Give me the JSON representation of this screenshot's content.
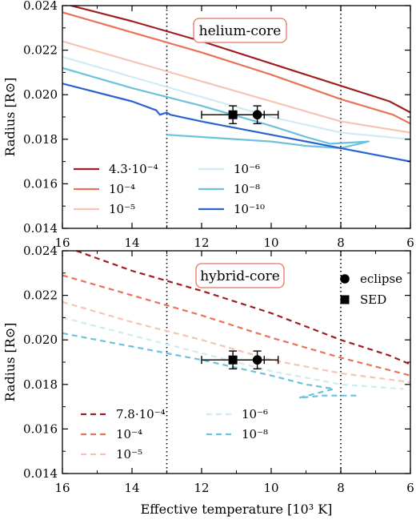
{
  "chart_data": [
    {
      "type": "line",
      "title": "helium-core",
      "xlabel": "",
      "ylabel": "Radius [R⊙]",
      "xlim": [
        16,
        6
      ],
      "ylim": [
        0.014,
        0.024
      ],
      "x_ticks": [
        "16",
        "14",
        "12",
        "10",
        "8",
        "6"
      ],
      "y_ticks": [
        "0.014",
        "0.016",
        "0.018",
        "0.020",
        "0.022",
        "0.024"
      ],
      "vlines": [
        13,
        8
      ],
      "legend_placement": "lower-left",
      "series": [
        {
          "name": "4.3·10⁻⁴",
          "color": "#a01e22",
          "dash": "solid",
          "points": [
            [
              16,
              0.0241
            ],
            [
              14,
              0.0233
            ],
            [
              12,
              0.0224
            ],
            [
              10,
              0.0214
            ],
            [
              8,
              0.0204
            ],
            [
              6.6,
              0.0197
            ],
            [
              6,
              0.0192
            ]
          ]
        },
        {
          "name": "10⁻⁴",
          "color": "#e8735a",
          "dash": "solid",
          "points": [
            [
              16,
              0.0237
            ],
            [
              14,
              0.0228
            ],
            [
              12,
              0.0219
            ],
            [
              10,
              0.0209
            ],
            [
              8,
              0.0198
            ],
            [
              6.5,
              0.0191
            ],
            [
              6,
              0.0187
            ]
          ]
        },
        {
          "name": "10⁻⁵",
          "color": "#f7c3b3",
          "dash": "solid",
          "points": [
            [
              16,
              0.0224
            ],
            [
              14,
              0.0215
            ],
            [
              12,
              0.0206
            ],
            [
              10,
              0.0197
            ],
            [
              8,
              0.0188
            ],
            [
              6,
              0.0183
            ]
          ]
        },
        {
          "name": "10⁻⁶",
          "color": "#cfecf3",
          "dash": "solid",
          "points": [
            [
              16,
              0.0217
            ],
            [
              14,
              0.0208
            ],
            [
              12,
              0.0199
            ],
            [
              10,
              0.019
            ],
            [
              8,
              0.0183
            ],
            [
              6,
              0.018
            ]
          ]
        },
        {
          "name": "10⁻⁸",
          "color": "#6cc2dc",
          "dash": "solid",
          "points": [
            [
              16,
              0.0212
            ],
            [
              14,
              0.0203
            ],
            [
              12,
              0.0195
            ],
            [
              10,
              0.0186
            ],
            [
              9,
              0.0181
            ],
            [
              8.3,
              0.0178
            ],
            [
              7.2,
              0.0179
            ],
            [
              8,
              0.0176
            ],
            [
              9,
              0.0177
            ],
            [
              10,
              0.0179
            ],
            [
              12,
              0.0181
            ],
            [
              13,
              0.0182
            ]
          ]
        },
        {
          "name": "10⁻¹⁰",
          "color": "#2a63cf",
          "dash": "solid",
          "points": [
            [
              16,
              0.0205
            ],
            [
              14,
              0.0197
            ],
            [
              13.3,
              0.0193
            ],
            [
              13.2,
              0.0191
            ],
            [
              13,
              0.0192
            ],
            [
              12.9,
              0.0191
            ],
            [
              12,
              0.0188
            ],
            [
              10,
              0.0182
            ],
            [
              8,
              0.0176
            ],
            [
              6,
              0.017
            ]
          ]
        }
      ],
      "observations": [
        {
          "name": "eclipse",
          "marker": "circle",
          "x": 10.4,
          "y": 0.0191,
          "xerr": 0.6,
          "yerr": 0.0004
        },
        {
          "name": "SED",
          "marker": "square",
          "x": 11.1,
          "y": 0.0191,
          "xerr": 0.9,
          "yerr": 0.0004
        }
      ]
    },
    {
      "type": "line",
      "title": "hybrid-core",
      "xlabel": "Effective temperature [10³ K]",
      "ylabel": "Radius [R⊙]",
      "xlim": [
        16,
        6
      ],
      "ylim": [
        0.014,
        0.024
      ],
      "x_ticks": [
        "16",
        "14",
        "12",
        "10",
        "8",
        "6"
      ],
      "y_ticks": [
        "0.014",
        "0.016",
        "0.018",
        "0.020",
        "0.022",
        "0.024"
      ],
      "vlines": [
        13,
        8
      ],
      "legend_placement": "lower-left",
      "marker_legend": [
        "eclipse",
        "SED"
      ],
      "series": [
        {
          "name": "7.8·10⁻⁴",
          "color": "#a01e22",
          "dash": "dashed",
          "points": [
            [
              15.6,
              0.024
            ],
            [
              14,
              0.0231
            ],
            [
              12,
              0.0222
            ],
            [
              10,
              0.0212
            ],
            [
              8,
              0.02
            ],
            [
              6.6,
              0.0193
            ],
            [
              6,
              0.0189
            ]
          ]
        },
        {
          "name": "10⁻⁴",
          "color": "#e8735a",
          "dash": "dashed",
          "points": [
            [
              16,
              0.0229
            ],
            [
              14,
              0.022
            ],
            [
              12,
              0.0211
            ],
            [
              10,
              0.0201
            ],
            [
              8,
              0.0192
            ],
            [
              6,
              0.0184
            ]
          ]
        },
        {
          "name": "10⁻⁵",
          "color": "#f7c3b3",
          "dash": "dashed",
          "points": [
            [
              16,
              0.0217
            ],
            [
              14,
              0.0208
            ],
            [
              12,
              0.02
            ],
            [
              10,
              0.0191
            ],
            [
              8,
              0.0185
            ],
            [
              6,
              0.0181
            ]
          ]
        },
        {
          "name": "10⁻⁶",
          "color": "#cfecf3",
          "dash": "dashed",
          "points": [
            [
              16,
              0.021
            ],
            [
              14,
              0.0202
            ],
            [
              12,
              0.0194
            ],
            [
              10,
              0.0186
            ],
            [
              8,
              0.018
            ],
            [
              6.2,
              0.0178
            ]
          ]
        },
        {
          "name": "10⁻⁸",
          "color": "#6cc2dc",
          "dash": "dashed",
          "points": [
            [
              16,
              0.0203
            ],
            [
              14,
              0.0197
            ],
            [
              12,
              0.0191
            ],
            [
              10,
              0.0184
            ],
            [
              9,
              0.018
            ],
            [
              8.2,
              0.0178
            ],
            [
              9.2,
              0.0174
            ],
            [
              8.5,
              0.0175
            ],
            [
              7.5,
              0.0175
            ]
          ]
        }
      ],
      "observations": [
        {
          "name": "eclipse",
          "marker": "circle",
          "x": 10.4,
          "y": 0.0191,
          "xerr": 0.6,
          "yerr": 0.0004
        },
        {
          "name": "SED",
          "marker": "square",
          "x": 11.1,
          "y": 0.0191,
          "xerr": 0.9,
          "yerr": 0.0004
        }
      ]
    }
  ]
}
